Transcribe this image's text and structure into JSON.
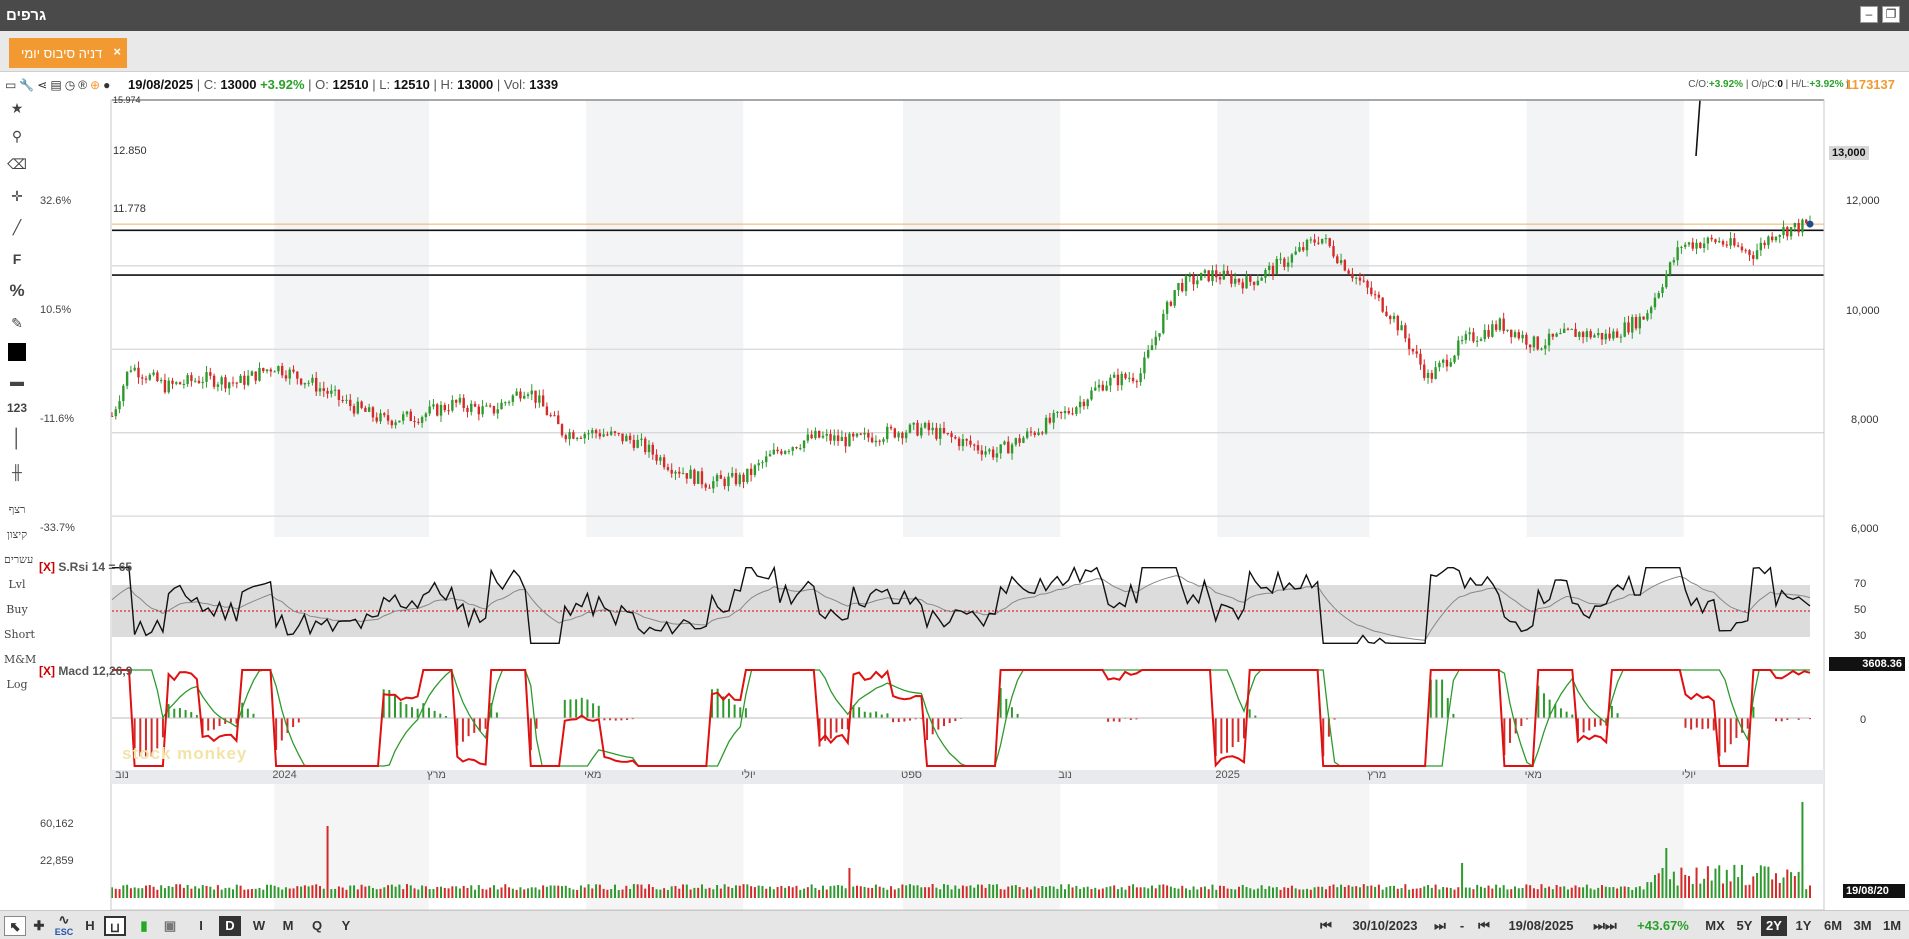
{
  "window": {
    "title": "גרפים",
    "minimize_icon": "minimize-icon",
    "restore_icon": "restore-icon"
  },
  "tab": {
    "label": "דניה סיבוס יומי",
    "close": "×"
  },
  "quote": {
    "date": "19/08/2025",
    "close_label": "C:",
    "close": "13000",
    "change": "+3.92%",
    "open_label": "O:",
    "open": "12510",
    "low_label": "L:",
    "low": "12510",
    "high_label": "H:",
    "high": "13000",
    "vol_label": "Vol:",
    "vol": "1339",
    "co_label": "C/O:",
    "co": "+3.92%",
    "opc_label": "O/pC:",
    "opc": "0",
    "hl_label": "H/L:",
    "hl": "+3.92%",
    "big_value": "1173137"
  },
  "left_tools": {
    "text_items": [
      "רצף",
      "קיצון",
      "עשרים",
      "Lvl",
      "Buy",
      "Short",
      "M&M",
      "Log"
    ],
    "icons": [
      "star-icon",
      "search-icon",
      "eraser-icon",
      "crosshair-icon",
      "line-icon",
      "fibonacci-icon",
      "percent-icon",
      "edit-icon",
      "color-icon",
      "thickness-icon",
      "numbers-icon",
      "vertical-line-icon",
      "candle-icon"
    ],
    "labels": {
      "fib": "F",
      "pct": "%",
      "num": "123"
    }
  },
  "pct_labels": [
    "32.6%",
    "10.5%",
    "-11.6%",
    "-33.7%"
  ],
  "level_labels": [
    "15.974",
    "12.850",
    "11.778"
  ],
  "price_axis": [
    "13,000",
    "12,000",
    "10,000",
    "8,000",
    "6,000"
  ],
  "rsi": {
    "close": "[X]",
    "title": "S.Rsi 14 = 65",
    "ticks": [
      "70",
      "50",
      "30"
    ]
  },
  "macd": {
    "close": "[X]",
    "title": "Macd 12,26,9",
    "tick0": "0",
    "tag": "3608.36"
  },
  "volume": {
    "ticks": [
      "60,162",
      "22,859"
    ],
    "date_tag": "19/08/20"
  },
  "months": [
    "נוב",
    "2024",
    "מרץ",
    "מאי",
    "יולי",
    "ספט",
    "נוב",
    "2025",
    "מרץ",
    "מאי",
    "יולי"
  ],
  "watermark": "stock monkey",
  "bottom": {
    "periods": [
      "I",
      "D",
      "W",
      "M",
      "Q",
      "Y"
    ],
    "selected_period": "D",
    "esc": "ESC",
    "from_date": "30/10/2023",
    "dash": "-",
    "to_date": "19/08/2025",
    "change": "+43.67%",
    "ranges": [
      "MX",
      "5Y",
      "2Y",
      "1Y",
      "6M",
      "3M",
      "1M"
    ],
    "selected_range": "2Y"
  },
  "chart_data": {
    "type": "candlestick",
    "x_start": "2023-10-30",
    "x_end": "2025-08-19",
    "ylim": [
      5500,
      15974
    ],
    "levels": [
      15974,
      12850,
      11778
    ],
    "last_close": 13000,
    "close_path": [
      [
        "2023-10-30",
        8400
      ],
      [
        "2023-11-06",
        9600
      ],
      [
        "2023-11-20",
        9100
      ],
      [
        "2023-12-04",
        9300
      ],
      [
        "2023-12-18",
        9200
      ],
      [
        "2024-01-01",
        9600
      ],
      [
        "2024-01-15",
        9200
      ],
      [
        "2024-01-29",
        8700
      ],
      [
        "2024-02-12",
        8300
      ],
      [
        "2024-02-26",
        8400
      ],
      [
        "2024-03-11",
        8700
      ],
      [
        "2024-03-25",
        8500
      ],
      [
        "2024-04-08",
        9100
      ],
      [
        "2024-04-22",
        8000
      ],
      [
        "2024-05-06",
        8000
      ],
      [
        "2024-05-20",
        7800
      ],
      [
        "2024-06-03",
        7200
      ],
      [
        "2024-06-17",
        6800
      ],
      [
        "2024-07-01",
        6900
      ],
      [
        "2024-07-15",
        7600
      ],
      [
        "2024-07-29",
        7900
      ],
      [
        "2024-08-12",
        7800
      ],
      [
        "2024-08-26",
        8000
      ],
      [
        "2024-09-09",
        8100
      ],
      [
        "2024-09-23",
        7800
      ],
      [
        "2024-10-07",
        7500
      ],
      [
        "2024-10-21",
        8000
      ],
      [
        "2024-11-04",
        8500
      ],
      [
        "2024-11-18",
        9200
      ],
      [
        "2024-12-02",
        9400
      ],
      [
        "2024-12-16",
        11500
      ],
      [
        "2024-12-30",
        11800
      ],
      [
        "2025-01-13",
        11600
      ],
      [
        "2025-01-27",
        12100
      ],
      [
        "2025-02-10",
        12700
      ],
      [
        "2025-02-24",
        11700
      ],
      [
        "2025-03-10",
        10800
      ],
      [
        "2025-03-24",
        9300
      ],
      [
        "2025-04-07",
        10200
      ],
      [
        "2025-04-21",
        10600
      ],
      [
        "2025-05-05",
        10100
      ],
      [
        "2025-05-19",
        10400
      ],
      [
        "2025-06-02",
        10300
      ],
      [
        "2025-06-16",
        10800
      ],
      [
        "2025-06-30",
        12500
      ],
      [
        "2025-07-14",
        12600
      ],
      [
        "2025-07-28",
        12300
      ],
      [
        "2025-08-05",
        12800
      ],
      [
        "2025-08-19",
        13000
      ]
    ]
  }
}
